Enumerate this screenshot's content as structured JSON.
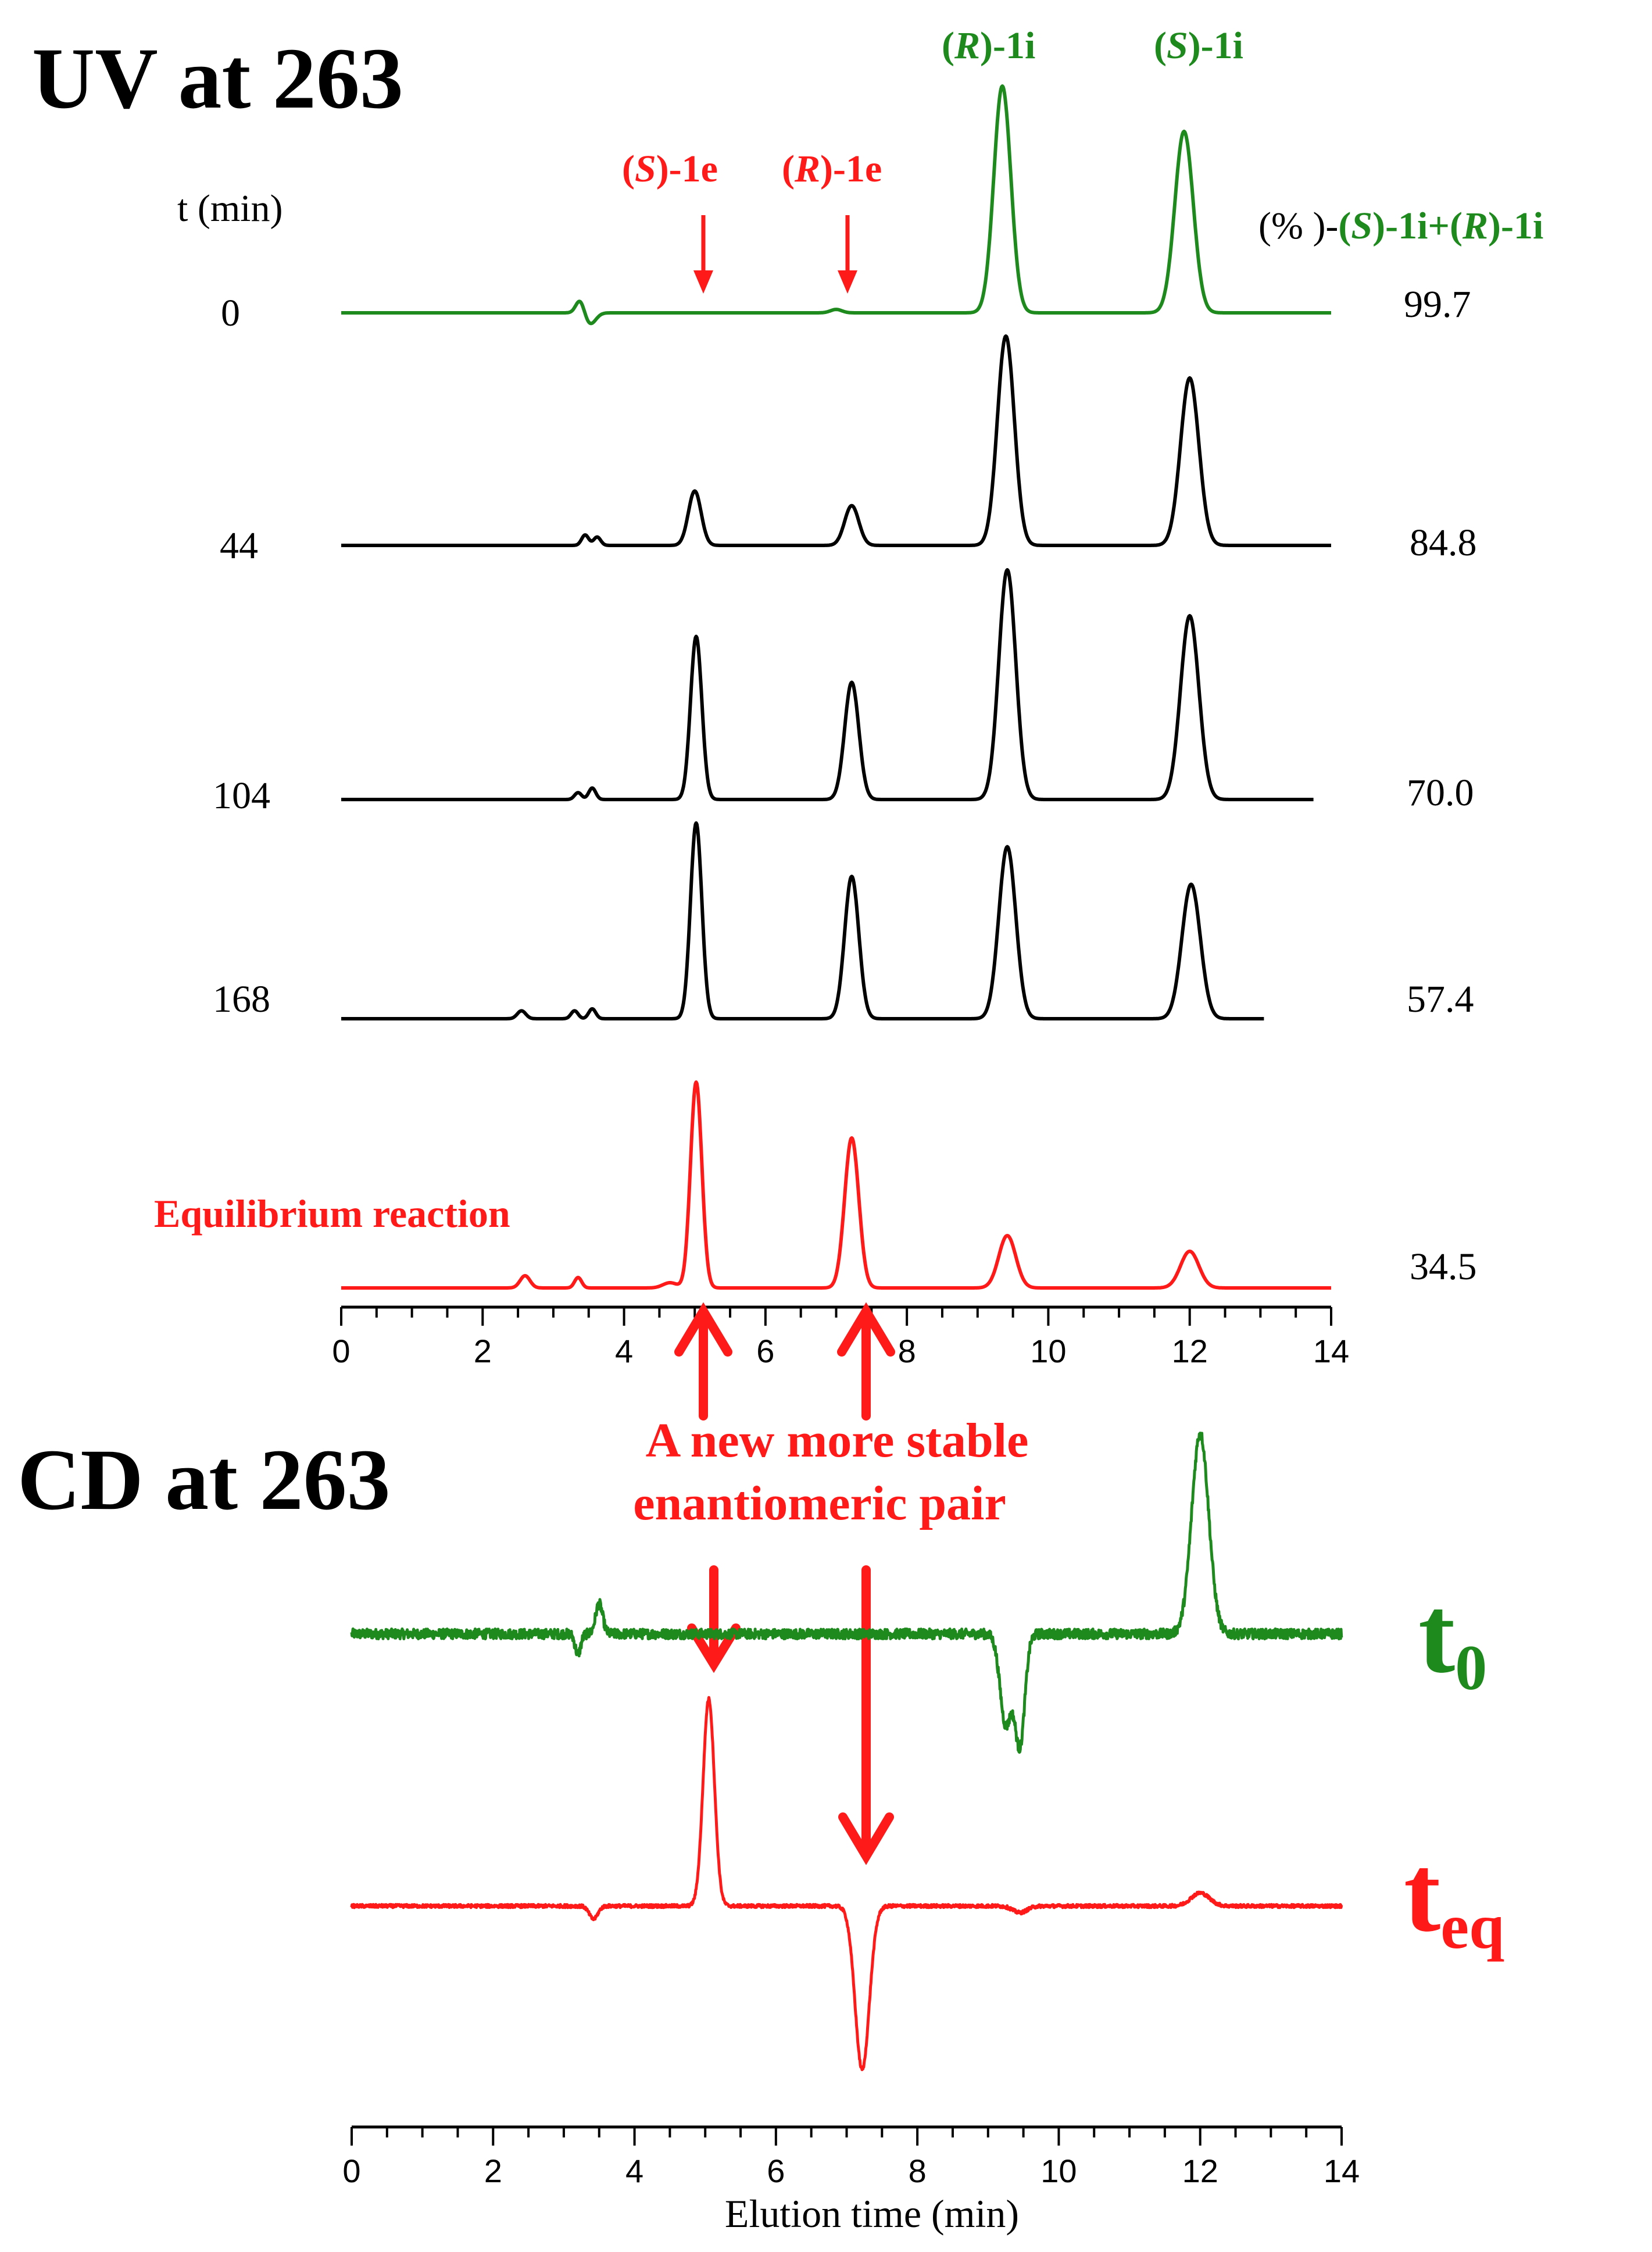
{
  "colors": {
    "green": "#1e8a1e",
    "red": "#ff1a1a",
    "black": "#000000"
  },
  "uv_panel": {
    "title": "UV at 263",
    "time_header": "t (min)",
    "percent_header": {
      "p1": "(% )-",
      "p2": "(",
      "p3": "S",
      "p4": ")-1i+(",
      "p5": "R",
      "p6": ")-1i"
    },
    "peak_labels": [
      {
        "open": "(",
        "letter": "R",
        "close": ")-1i",
        "color": "green"
      },
      {
        "open": "(",
        "letter": "S",
        "close": ")-1i",
        "color": "green"
      },
      {
        "open": "(",
        "letter": "S",
        "close": ")-1e",
        "color": "red"
      },
      {
        "open": "(",
        "letter": "R",
        "close": ")-1e",
        "color": "red"
      }
    ],
    "equilibrium_label": "Equilibrium reaction",
    "time_labels": [
      "0",
      "44",
      "104",
      "168"
    ],
    "percent_values": [
      "99.7",
      "84.8",
      "70.0",
      "57.4",
      "34.5"
    ]
  },
  "annotation": {
    "line1": "A new more stable",
    "line2": "enantiomeric pair"
  },
  "cd_panel": {
    "title": "CD at 263",
    "t0": {
      "main": "t",
      "sub": "0"
    },
    "teq": {
      "main": "t",
      "sub": "eq"
    },
    "xlabel": "Elution time (min)"
  },
  "chart_data": [
    {
      "type": "line",
      "title": "UV at 263",
      "xlabel": "",
      "xlim": [
        0,
        14
      ],
      "x_ticks": [
        "0",
        "2",
        "4",
        "6",
        "8",
        "10",
        "12",
        "14"
      ],
      "series": [
        {
          "label": "0",
          "color": "green",
          "percent": 99.7,
          "x_end": 14,
          "peaks": [
            [
              3.38,
              0.06,
              0.06
            ],
            [
              3.52,
              -0.05,
              0.08
            ],
            [
              7.0,
              0.015,
              0.08
            ],
            [
              9.35,
              1.0,
              0.12
            ],
            [
              11.92,
              0.8,
              0.13
            ]
          ]
        },
        {
          "label": "44",
          "color": "black",
          "percent": 84.8,
          "x_end": 14,
          "peaks": [
            [
              3.45,
              0.05,
              0.05
            ],
            [
              3.62,
              0.04,
              0.05
            ],
            [
              5.0,
              0.26,
              0.09
            ],
            [
              7.22,
              0.19,
              0.1
            ],
            [
              9.4,
              1.0,
              0.12
            ],
            [
              12.0,
              0.8,
              0.13
            ]
          ]
        },
        {
          "label": "104",
          "color": "black",
          "percent": 70.0,
          "x_end": 13.75,
          "peaks": [
            [
              3.35,
              0.03,
              0.05
            ],
            [
              3.55,
              0.05,
              0.05
            ],
            [
              5.02,
              0.71,
              0.08
            ],
            [
              7.22,
              0.51,
              0.1
            ],
            [
              9.42,
              1.0,
              0.12
            ],
            [
              12.0,
              0.8,
              0.13
            ]
          ]
        },
        {
          "label": "168",
          "color": "black",
          "percent": 57.4,
          "x_end": 13.05,
          "peaks": [
            [
              2.55,
              0.04,
              0.06
            ],
            [
              3.3,
              0.04,
              0.05
            ],
            [
              3.55,
              0.05,
              0.05
            ],
            [
              5.02,
              0.99,
              0.08
            ],
            [
              7.22,
              0.72,
              0.1
            ],
            [
              9.42,
              0.87,
              0.12
            ],
            [
              12.02,
              0.68,
              0.13
            ]
          ]
        },
        {
          "label": "Equilibrium reaction",
          "color": "red",
          "percent": 34.5,
          "x_end": 14,
          "peaks": [
            [
              2.6,
              0.07,
              0.07
            ],
            [
              3.35,
              0.06,
              0.05
            ],
            [
              4.65,
              0.03,
              0.1
            ],
            [
              5.02,
              1.18,
              0.08
            ],
            [
              7.22,
              0.86,
              0.1
            ],
            [
              9.42,
              0.3,
              0.12
            ],
            [
              12.0,
              0.21,
              0.13
            ]
          ]
        }
      ]
    },
    {
      "type": "line",
      "title": "CD at 263",
      "xlabel": "Elution time (min)",
      "xlim": [
        0,
        14
      ],
      "x_ticks": [
        "0",
        "2",
        "4",
        "6",
        "8",
        "10",
        "12",
        "14"
      ],
      "series": [
        {
          "label": "t0",
          "color": "green",
          "x_end": 14,
          "noise": 0.05,
          "peaks": [
            [
              3.5,
              0.15,
              0.05
            ],
            [
              3.2,
              -0.1,
              0.04
            ],
            [
              9.25,
              -0.45,
              0.08
            ],
            [
              9.45,
              -0.55,
              0.07
            ],
            [
              12.0,
              1.0,
              0.12
            ]
          ]
        },
        {
          "label": "teq",
          "color": "red",
          "x_end": 14,
          "noise": 0.015,
          "peaks": [
            [
              3.42,
              -0.06,
              0.06
            ],
            [
              5.05,
              0.95,
              0.08
            ],
            [
              7.22,
              -0.75,
              0.1
            ],
            [
              9.45,
              -0.03,
              0.1
            ],
            [
              12.0,
              0.06,
              0.13
            ]
          ]
        }
      ]
    }
  ]
}
